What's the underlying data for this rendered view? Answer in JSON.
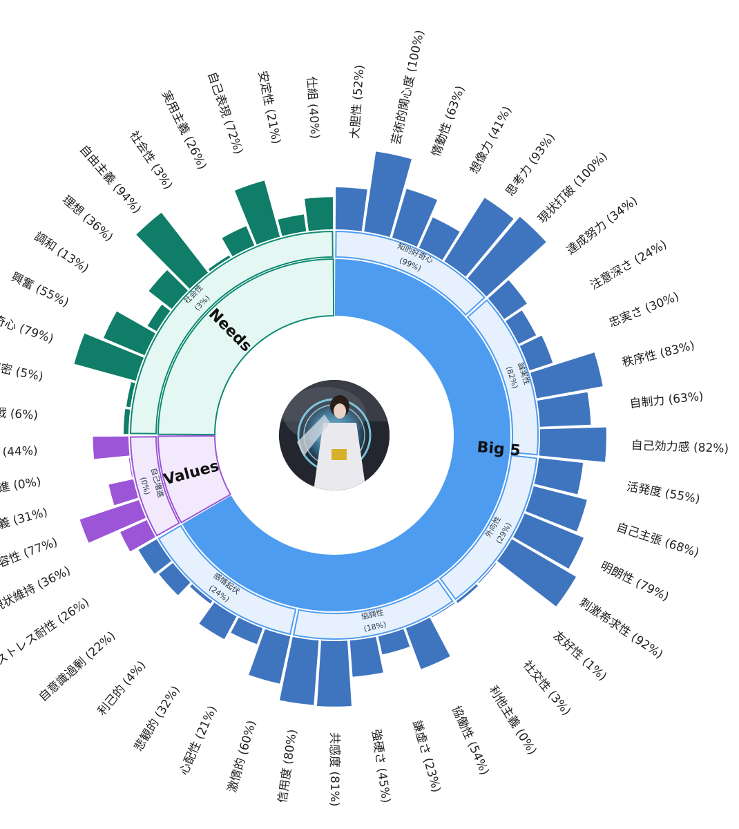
{
  "chart_data": {
    "type": "sunburst",
    "title": "",
    "categories": [
      {
        "name": "Big 5",
        "color": "#4e9cf0",
        "light": "#e6f1fd",
        "bar": "#3f75bf",
        "groups": [
          {
            "name": "知的好奇心",
            "value": "(99%)",
            "traits": [
              {
                "name": "大胆性",
                "value": 52
              },
              {
                "name": "芸術的関心度",
                "value": 100
              },
              {
                "name": "情動性",
                "value": 63
              },
              {
                "name": "想像力",
                "value": 41
              },
              {
                "name": "思考力",
                "value": 93
              },
              {
                "name": "現状打破",
                "value": 100
              }
            ]
          },
          {
            "name": "誠実性",
            "value": "(82%)",
            "traits": [
              {
                "name": "達成努力",
                "value": 34
              },
              {
                "name": "注意深さ",
                "value": 24
              },
              {
                "name": "忠実さ",
                "value": 30
              },
              {
                "name": "秩序性",
                "value": 83
              },
              {
                "name": "自制力",
                "value": 63
              },
              {
                "name": "自己効力感",
                "value": 82
              }
            ]
          },
          {
            "name": "外向性",
            "value": "(29%)",
            "traits": [
              {
                "name": "活発度",
                "value": 55
              },
              {
                "name": "自己主張",
                "value": 68
              },
              {
                "name": "明朗性",
                "value": 79
              },
              {
                "name": "刺激希求性",
                "value": 92
              },
              {
                "name": "友好性",
                "value": 1
              },
              {
                "name": "社交性",
                "value": 3
              }
            ]
          },
          {
            "name": "協調性",
            "value": "(18%)",
            "traits": [
              {
                "name": "利他主義",
                "value": 0
              },
              {
                "name": "協働性",
                "value": 54
              },
              {
                "name": "謙虚さ",
                "value": 23
              },
              {
                "name": "強硬さ",
                "value": 45
              },
              {
                "name": "共感度",
                "value": 81
              },
              {
                "name": "信用度",
                "value": 80
              }
            ]
          },
          {
            "name": "感情起伏",
            "value": "(24%)",
            "traits": [
              {
                "name": "激情的",
                "value": 60
              },
              {
                "name": "心配性",
                "value": 21
              },
              {
                "name": "悲観的",
                "value": 32
              },
              {
                "name": "利己的",
                "value": 4
              },
              {
                "name": "自意識過剰",
                "value": 22
              },
              {
                "name": "低ストレス耐性",
                "value": 26
              }
            ]
          }
        ]
      },
      {
        "name": "Values",
        "color": "#9b55d6",
        "light": "#f3e9fc",
        "bar": "#9b55d6",
        "groups": [
          {
            "name": "自己増進",
            "value": "(0%)",
            "traits": [
              {
                "name": "現状維持",
                "value": 36
              },
              {
                "name": "変化許容性",
                "value": 77
              },
              {
                "name": "快楽主義",
                "value": 31
              },
              {
                "name": "自己増進",
                "value": 0
              },
              {
                "name": "自己超越",
                "value": 44
              }
            ]
          }
        ]
      },
      {
        "name": "Needs",
        "color": "#0f8a72",
        "light": "#e4f7f3",
        "bar": "#0f7d68",
        "groups": [
          {
            "name": "社会性",
            "value": "(3%)",
            "traits": [
              {
                "name": "挑戦",
                "value": 6
              },
              {
                "name": "親密",
                "value": 5
              },
              {
                "name": "好奇心",
                "value": 79
              },
              {
                "name": "興奮",
                "value": 55
              },
              {
                "name": "調和",
                "value": 13
              },
              {
                "name": "理想",
                "value": 36
              },
              {
                "name": "自由主義",
                "value": 94
              },
              {
                "name": "社会性",
                "value": 3
              },
              {
                "name": "実用主義",
                "value": 26
              },
              {
                "name": "自己表現",
                "value": 72
              },
              {
                "name": "安定性",
                "value": 21
              },
              {
                "name": "仕組",
                "value": 40
              }
            ]
          }
        ]
      }
    ]
  },
  "center_image": {
    "icon": "profile-photo",
    "description_alt": "avatar"
  }
}
